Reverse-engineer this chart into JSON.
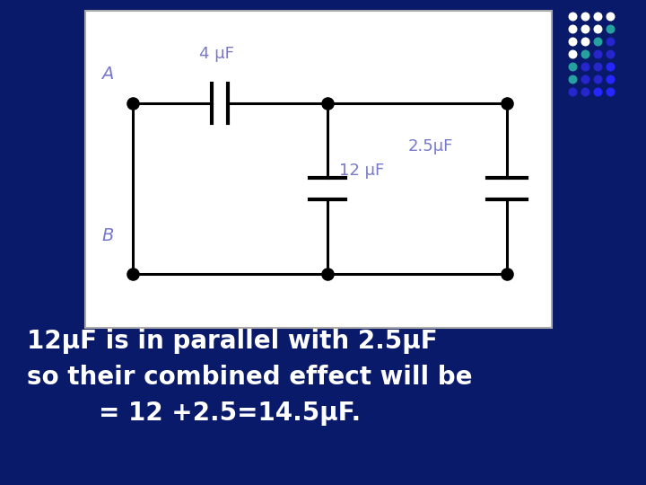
{
  "bg_color": "#0a1a6b",
  "panel_bg": "#ffffff",
  "label_color": "#7777cc",
  "line_color": "#000000",
  "dot_color": "#000000",
  "text_color": "#ffffff",
  "text_line1": "12μF is in parallel with 2.5μF",
  "text_line2": "so their combined effect will be",
  "text_line3": "= 12 +2.5=14.5μF.",
  "label_A": "A",
  "label_B": "B",
  "label_4uF": "4 μF",
  "label_12uF": "12 μF",
  "label_2p5uF": "2.5μF",
  "dot_grid": [
    [
      "#ffffff",
      "#ffffff",
      "#ffffff",
      "#ffffff"
    ],
    [
      "#ffffff",
      "#ffffff",
      "#ffffff",
      "#26a0a0"
    ],
    [
      "#ffffff",
      "#ffffff",
      "#26a0a0",
      "#2626cc"
    ],
    [
      "#ffffff",
      "#26a0a0",
      "#2626cc",
      "#2626cc"
    ],
    [
      "#26a0a0",
      "#2626cc",
      "#2626cc",
      "#2626ff"
    ],
    [
      "#26a0a0",
      "#2626cc",
      "#2626cc",
      "#2626ff"
    ],
    [
      "#2626cc",
      "#2626cc",
      "#2626ff",
      "#2626ff"
    ]
  ]
}
